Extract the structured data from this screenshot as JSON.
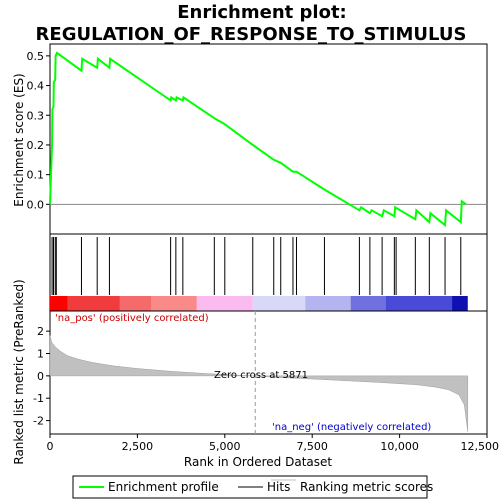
{
  "chart_data": {
    "type": "line",
    "title_line1": "Enrichment plot:",
    "title_line2": "REGULATION_OF_RESPONSE_TO_STIMULUS",
    "xlabel": "Rank in Ordered Dataset",
    "ylabel_top": "Enrichment score (ES)",
    "ylabel_bottom": "Ranked list metric (PreRanked)",
    "x_range": [
      0,
      12500
    ],
    "x_ticks": [
      0,
      2500,
      5000,
      7500,
      10000,
      12500
    ],
    "x_tick_labels": [
      "0",
      "2,500",
      "5,000",
      "7,500",
      "10,000",
      "12,500"
    ],
    "es_ylim": [
      -0.1,
      0.54
    ],
    "es_ticks": [
      0.0,
      0.1,
      0.2,
      0.3,
      0.4,
      0.5
    ],
    "es_tick_labels": [
      "0.0",
      "0.1",
      "0.2",
      "0.3",
      "0.4",
      "0.5"
    ],
    "metric_ylim": [
      -2.6,
      2.9
    ],
    "metric_ticks": [
      -2,
      -1,
      0,
      1,
      2
    ],
    "metric_tick_labels": [
      "-2",
      "-1",
      "0",
      "1",
      "2"
    ],
    "enrichment_profile": {
      "name": "Enrichment profile",
      "color": "#00ff00",
      "x": [
        0,
        60,
        70,
        100,
        110,
        150,
        160,
        200,
        900,
        920,
        1350,
        1370,
        1700,
        1720,
        3450,
        3470,
        3600,
        3620,
        3800,
        3820,
        4700,
        5000,
        5800,
        6400,
        6600,
        6950,
        7050,
        7850,
        8850,
        8900,
        9150,
        9200,
        9500,
        9550,
        9850,
        9870,
        10450,
        10480,
        10850,
        10880,
        11300,
        11330,
        11750,
        11780,
        11900
      ],
      "y": [
        0.0,
        0.21,
        0.32,
        0.33,
        0.41,
        0.42,
        0.5,
        0.51,
        0.45,
        0.49,
        0.46,
        0.49,
        0.46,
        0.49,
        0.35,
        0.36,
        0.35,
        0.36,
        0.35,
        0.36,
        0.29,
        0.27,
        0.2,
        0.15,
        0.14,
        0.11,
        0.11,
        0.05,
        -0.02,
        -0.01,
        -0.03,
        -0.02,
        -0.04,
        -0.02,
        -0.04,
        -0.01,
        -0.05,
        -0.02,
        -0.06,
        -0.03,
        -0.07,
        -0.02,
        -0.06,
        0.01,
        0.0
      ]
    },
    "hits": {
      "name": "Hits",
      "x": [
        60,
        100,
        150,
        180,
        900,
        1350,
        1700,
        3450,
        3600,
        3800,
        4700,
        5000,
        5800,
        6400,
        6600,
        6950,
        7050,
        7850,
        8850,
        9150,
        9500,
        9850,
        9900,
        10450,
        10850,
        11300,
        11750
      ]
    },
    "ranking_metric": {
      "name": "Ranking metric scores",
      "color": "#c0c0c0",
      "x": [
        0,
        50,
        150,
        300,
        500,
        800,
        1200,
        1800,
        2500,
        3500,
        4500,
        5500,
        5871,
        6500,
        7500,
        8500,
        9500,
        10500,
        11000,
        11400,
        11700,
        11850,
        11900,
        11950
      ],
      "y": [
        1.8,
        1.5,
        1.3,
        1.1,
        0.9,
        0.75,
        0.6,
        0.45,
        0.33,
        0.2,
        0.1,
        0.02,
        0.0,
        -0.07,
        -0.14,
        -0.22,
        -0.3,
        -0.4,
        -0.5,
        -0.62,
        -0.85,
        -1.3,
        -1.9,
        -2.5
      ]
    },
    "zero_cross_x": 5871,
    "zero_cross_label": "Zero cross at 5871",
    "pos_label": "'na_pos' (positively correlated)",
    "neg_label": "'na_neg' (negatively correlated)",
    "pos_label_color": "#cc0000",
    "neg_label_color": "#0000cc",
    "heat_segments": [
      {
        "x0": 0,
        "x1": 500,
        "color": "#ff0000"
      },
      {
        "x0": 500,
        "x1": 2000,
        "color": "#f03c3c"
      },
      {
        "x0": 2000,
        "x1": 2900,
        "color": "#f56a6a"
      },
      {
        "x0": 2900,
        "x1": 4200,
        "color": "#f88a8a"
      },
      {
        "x0": 4200,
        "x1": 5800,
        "color": "#fbbaf0"
      },
      {
        "x0": 5800,
        "x1": 7300,
        "color": "#d8d8f8"
      },
      {
        "x0": 7300,
        "x1": 8600,
        "color": "#b4b4f0"
      },
      {
        "x0": 8600,
        "x1": 9600,
        "color": "#7070e0"
      },
      {
        "x0": 9600,
        "x1": 11500,
        "color": "#4a4ad8"
      },
      {
        "x0": 11500,
        "x1": 11950,
        "color": "#1010b0"
      }
    ],
    "legend": [
      {
        "label": "Enrichment profile",
        "color": "#00ff00"
      },
      {
        "label": "Hits",
        "color": "#000000"
      },
      {
        "label": "Ranking metric scores",
        "color": "#c0c0c0"
      }
    ]
  }
}
